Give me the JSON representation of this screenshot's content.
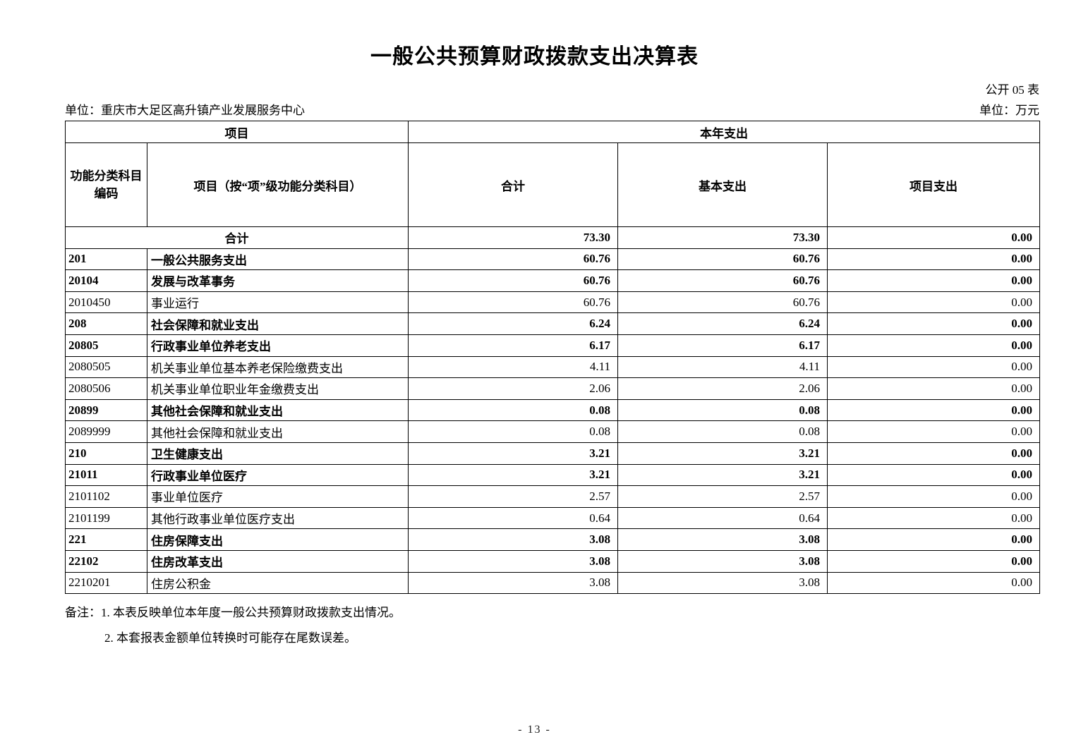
{
  "page": {
    "title": "一般公共预算财政拨款支出决算表",
    "doc_number": "公开 05 表",
    "org_unit": "单位：重庆市大足区高升镇产业发展服务中心",
    "currency_unit": "单位：万元",
    "page_number": "- 13 -"
  },
  "table": {
    "header": {
      "project_group": "项目",
      "year_expenditure_group": "本年支出",
      "code_line1": "功能分类科目",
      "code_line2": "编码",
      "item": "项目（按“项”级功能分类科目）",
      "total": "合计",
      "basic": "基本支出",
      "project": "项目支出"
    },
    "total_row": {
      "label": "合计",
      "total": "73.30",
      "basic": "73.30",
      "project": "0.00"
    },
    "rows": [
      {
        "code": "201",
        "item": "一般公共服务支出",
        "total": "60.76",
        "basic": "60.76",
        "project": "0.00",
        "bold": true
      },
      {
        "code": "20104",
        "item": "发展与改革事务",
        "total": "60.76",
        "basic": "60.76",
        "project": "0.00",
        "bold": true
      },
      {
        "code": "2010450",
        "item": "事业运行",
        "total": "60.76",
        "basic": "60.76",
        "project": "0.00",
        "bold": false
      },
      {
        "code": "208",
        "item": "社会保障和就业支出",
        "total": "6.24",
        "basic": "6.24",
        "project": "0.00",
        "bold": true
      },
      {
        "code": "20805",
        "item": "行政事业单位养老支出",
        "total": "6.17",
        "basic": "6.17",
        "project": "0.00",
        "bold": true
      },
      {
        "code": "2080505",
        "item": "机关事业单位基本养老保险缴费支出",
        "total": "4.11",
        "basic": "4.11",
        "project": "0.00",
        "bold": false
      },
      {
        "code": "2080506",
        "item": "机关事业单位职业年金缴费支出",
        "total": "2.06",
        "basic": "2.06",
        "project": "0.00",
        "bold": false
      },
      {
        "code": "20899",
        "item": "其他社会保障和就业支出",
        "total": "0.08",
        "basic": "0.08",
        "project": "0.00",
        "bold": true
      },
      {
        "code": "2089999",
        "item": "其他社会保障和就业支出",
        "total": "0.08",
        "basic": "0.08",
        "project": "0.00",
        "bold": false
      },
      {
        "code": "210",
        "item": "卫生健康支出",
        "total": "3.21",
        "basic": "3.21",
        "project": "0.00",
        "bold": true
      },
      {
        "code": "21011",
        "item": "行政事业单位医疗",
        "total": "3.21",
        "basic": "3.21",
        "project": "0.00",
        "bold": true
      },
      {
        "code": "2101102",
        "item": "事业单位医疗",
        "total": "2.57",
        "basic": "2.57",
        "project": "0.00",
        "bold": false
      },
      {
        "code": "2101199",
        "item": "其他行政事业单位医疗支出",
        "total": "0.64",
        "basic": "0.64",
        "project": "0.00",
        "bold": false
      },
      {
        "code": "221",
        "item": "住房保障支出",
        "total": "3.08",
        "basic": "3.08",
        "project": "0.00",
        "bold": true
      },
      {
        "code": "22102",
        "item": "住房改革支出",
        "total": "3.08",
        "basic": "3.08",
        "project": "0.00",
        "bold": true
      },
      {
        "code": "2210201",
        "item": "住房公积金",
        "total": "3.08",
        "basic": "3.08",
        "project": "0.00",
        "bold": false
      }
    ]
  },
  "notes": {
    "line1": "备注：1. 本表反映单位本年度一般公共预算财政拨款支出情况。",
    "line2": "2. 本套报表金额单位转换时可能存在尾数误差。"
  }
}
